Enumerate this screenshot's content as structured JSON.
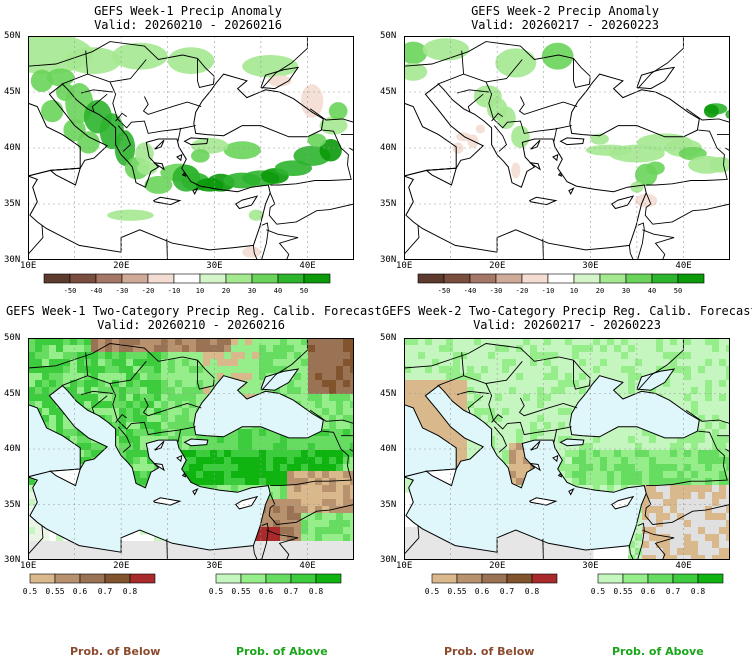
{
  "panels": [
    {
      "id": "p1",
      "title": "GEFS Week-1 Precip Anomaly",
      "valid": "Valid: 20260210 - 20260216",
      "type": "anomaly"
    },
    {
      "id": "p2",
      "title": "GEFS Week-2 Precip Anomaly",
      "valid": "Valid: 20260217 - 20260223",
      "type": "anomaly"
    },
    {
      "id": "p3",
      "title": "GEFS Week-1 Two-Category Precip Reg. Calib. Forecast",
      "valid": "Valid: 20260210 - 20260216",
      "type": "prob"
    },
    {
      "id": "p4",
      "title": "GEFS Week-2 Two-Category Precip Reg. Calib. Forecast",
      "valid": "Valid: 20260217 - 20260223",
      "type": "prob"
    }
  ],
  "lat_labels": [
    "50N",
    "45N",
    "40N",
    "35N",
    "30N"
  ],
  "lon_labels": [
    "10E",
    "20E",
    "30E",
    "40E"
  ],
  "anomaly_colorbar": {
    "labels": [
      "-50",
      "-40",
      "-30",
      "-20",
      "-10",
      "10",
      "20",
      "30",
      "40",
      "50"
    ],
    "colors": [
      "#5c3a2e",
      "#7a4e3e",
      "#a47766",
      "#d0aa99",
      "#f3ddd2",
      "#ffffff",
      "#d4f5c9",
      "#a4e890",
      "#6ad45a",
      "#2db42d",
      "#0a9a0a"
    ]
  },
  "below_colorbar": {
    "labels": [
      "0.5",
      "0.55",
      "0.6",
      "0.7",
      "0.8"
    ],
    "colors": [
      "#d9b88c",
      "#b8926e",
      "#9a7254",
      "#82542e",
      "#a82a2a"
    ]
  },
  "above_colorbar": {
    "labels": [
      "0.5",
      "0.55",
      "0.6",
      "0.7",
      "0.8"
    ],
    "colors": [
      "#c6f6c0",
      "#96ee8a",
      "#66dd60",
      "#3dcc3d",
      "#10b410"
    ]
  },
  "prob_below_label": "Prob. of Below",
  "prob_above_label": "Prob. of Above",
  "colors": {
    "below_text": "#8b4a2e",
    "above_text": "#1aa51a",
    "sea": "#dff7fb",
    "land_none": "#ffffff",
    "no_data": "#e8e8e8"
  }
}
